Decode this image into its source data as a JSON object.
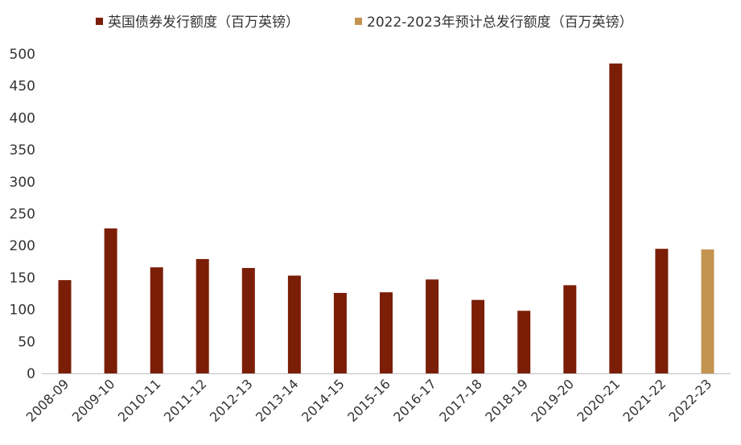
{
  "chart_data": {
    "type": "bar",
    "categories": [
      "2008-09",
      "2009-10",
      "2010-11",
      "2011-12",
      "2012-13",
      "2013-14",
      "2014-15",
      "2015-16",
      "2016-17",
      "2017-18",
      "2018-19",
      "2019-20",
      "2020-21",
      "2021-22",
      "2022-23"
    ],
    "series": [
      {
        "name": "英国债券发行额度（百万英镑）",
        "color": "#7B1E08",
        "values": [
          146,
          227,
          166,
          179,
          165,
          153,
          126,
          127,
          147,
          115,
          98,
          138,
          485,
          195,
          null
        ]
      },
      {
        "name": "2022-2023年预计总发行额度（百万英镑）",
        "color": "#C39450",
        "values": [
          null,
          null,
          null,
          null,
          null,
          null,
          null,
          null,
          null,
          null,
          null,
          null,
          null,
          null,
          194
        ]
      }
    ],
    "ylim": [
      0,
      500
    ],
    "yticks": [
      0,
      50,
      100,
      150,
      200,
      250,
      300,
      350,
      400,
      450,
      500
    ],
    "legend_position": "top",
    "grid": false
  }
}
